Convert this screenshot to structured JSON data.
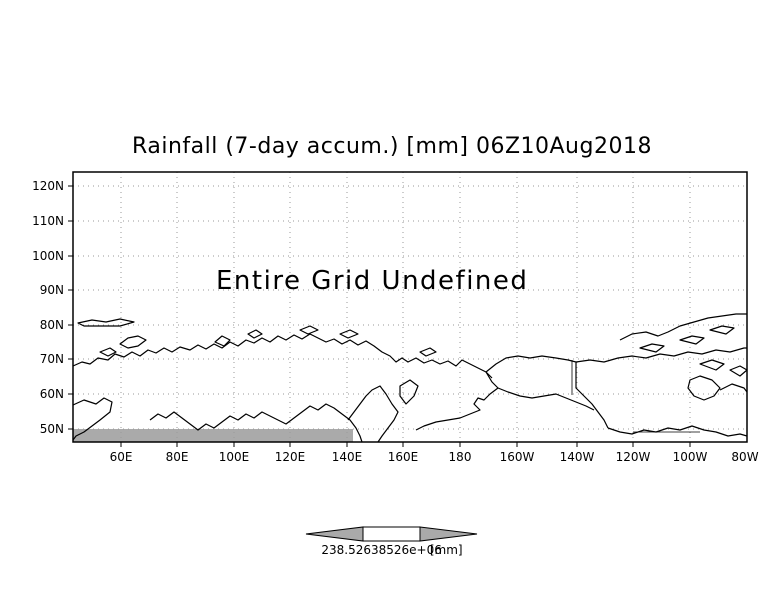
{
  "map": {
    "title": "Rainfall (7-day accum.) [mm] 06Z10Aug2018",
    "undefined_message": "Entire Grid Undefined",
    "lat_labels": [
      "120N",
      "110N",
      "100N",
      "90N",
      "80N",
      "70N",
      "60N",
      "50N"
    ],
    "lon_labels": [
      "60E",
      "80E",
      "100E",
      "120E",
      "140E",
      "160E",
      "180",
      "160W",
      "140W",
      "120W",
      "100W",
      "80W"
    ],
    "colors": {
      "coastline": "#000000",
      "grid": "#999999",
      "undefined_fill": "#aaaaaa",
      "colorbar_arrow": "#aaaaaa"
    }
  },
  "colorbar": {
    "label": "238.52638526e+06",
    "unit": "[mm]"
  }
}
